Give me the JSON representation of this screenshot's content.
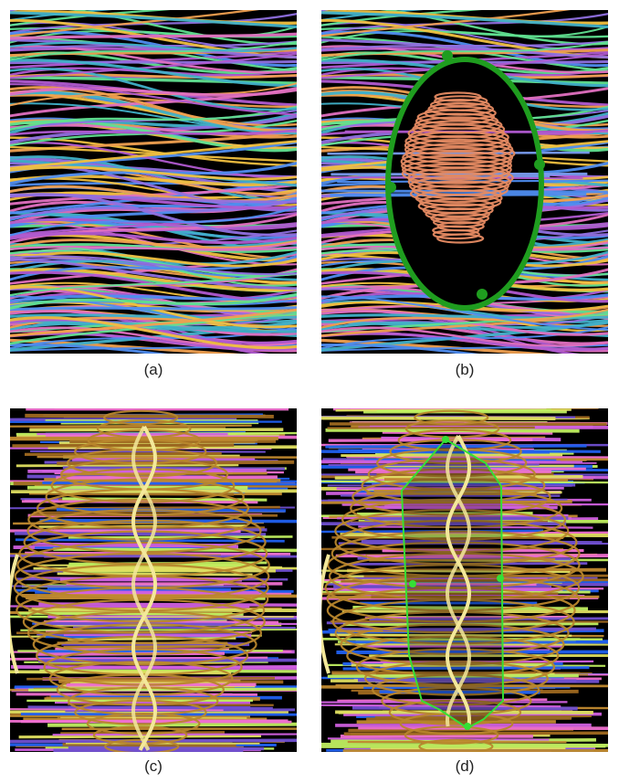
{
  "figure": {
    "panels": [
      {
        "id": "a",
        "caption": "(a)"
      },
      {
        "id": "b",
        "caption": "(b)"
      },
      {
        "id": "c",
        "caption": "(c)"
      },
      {
        "id": "d",
        "caption": "(d)"
      }
    ]
  },
  "colors": {
    "background": "#000000",
    "lens_green": "#1f9d1f",
    "lens_outline_green": "#35e035",
    "helix_salmon": "#e58a62",
    "helix_gold": "#b8862c",
    "helix_pale_yellow": "#f3e89a",
    "stream_palette_top": [
      "#b05ad0",
      "#4f8df0",
      "#f0a050",
      "#40b0c8",
      "#e070c0",
      "#f0c040",
      "#9070e0",
      "#60e090"
    ],
    "stream_palette_bottom": [
      "#a06a20",
      "#c08a30",
      "#7050d0",
      "#d060e0",
      "#2060f0",
      "#c0f060",
      "#e0e060",
      "#f070d0"
    ]
  }
}
